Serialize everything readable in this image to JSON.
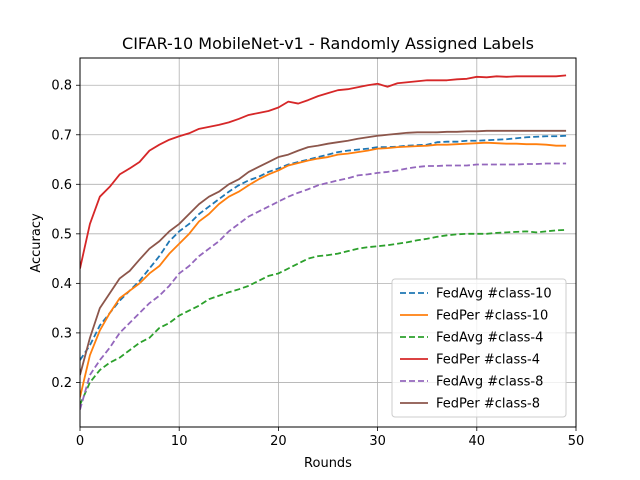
{
  "chart_data": {
    "type": "line",
    "title": "CIFAR-10 MobileNet-v1 - Randomly Assigned Labels",
    "xlabel": "Rounds",
    "ylabel": "Accuracy",
    "xlim": [
      0,
      50
    ],
    "ylim": [
      0.11,
      0.855
    ],
    "xticks": [
      0,
      10,
      20,
      30,
      40,
      50
    ],
    "yticks": [
      0.2,
      0.3,
      0.4,
      0.5,
      0.6,
      0.7,
      0.8
    ],
    "grid": true,
    "legend_position": "lower-right",
    "x": [
      0,
      1,
      2,
      3,
      4,
      5,
      6,
      7,
      8,
      9,
      10,
      11,
      12,
      13,
      14,
      15,
      16,
      17,
      18,
      19,
      20,
      21,
      22,
      23,
      24,
      25,
      26,
      27,
      28,
      29,
      30,
      31,
      32,
      33,
      34,
      35,
      36,
      37,
      38,
      39,
      40,
      41,
      42,
      43,
      44,
      45,
      46,
      47,
      48,
      49
    ],
    "series": [
      {
        "name": "FedAvg #class-10",
        "color": "#1f77b4",
        "dash": true,
        "values": [
          0.245,
          0.275,
          0.315,
          0.34,
          0.365,
          0.385,
          0.405,
          0.43,
          0.455,
          0.485,
          0.505,
          0.52,
          0.54,
          0.555,
          0.57,
          0.585,
          0.598,
          0.608,
          0.615,
          0.625,
          0.632,
          0.64,
          0.645,
          0.65,
          0.655,
          0.66,
          0.665,
          0.668,
          0.67,
          0.672,
          0.675,
          0.675,
          0.676,
          0.678,
          0.679,
          0.68,
          0.685,
          0.686,
          0.686,
          0.688,
          0.688,
          0.689,
          0.69,
          0.691,
          0.693,
          0.695,
          0.696,
          0.697,
          0.697,
          0.698
        ]
      },
      {
        "name": "FedPer #class-10",
        "color": "#ff7f0e",
        "dash": false,
        "values": [
          0.17,
          0.255,
          0.305,
          0.34,
          0.37,
          0.385,
          0.4,
          0.42,
          0.435,
          0.46,
          0.48,
          0.5,
          0.525,
          0.54,
          0.56,
          0.575,
          0.585,
          0.598,
          0.61,
          0.62,
          0.628,
          0.638,
          0.643,
          0.648,
          0.652,
          0.655,
          0.66,
          0.662,
          0.665,
          0.668,
          0.672,
          0.673,
          0.675,
          0.676,
          0.677,
          0.678,
          0.68,
          0.68,
          0.681,
          0.682,
          0.683,
          0.684,
          0.683,
          0.682,
          0.682,
          0.681,
          0.681,
          0.68,
          0.678,
          0.678
        ]
      },
      {
        "name": "FedAvg #class-4",
        "color": "#2ca02c",
        "dash": true,
        "values": [
          0.155,
          0.2,
          0.225,
          0.24,
          0.25,
          0.265,
          0.28,
          0.29,
          0.31,
          0.32,
          0.335,
          0.345,
          0.355,
          0.368,
          0.375,
          0.382,
          0.388,
          0.395,
          0.405,
          0.415,
          0.42,
          0.43,
          0.44,
          0.45,
          0.455,
          0.457,
          0.46,
          0.465,
          0.47,
          0.473,
          0.475,
          0.477,
          0.48,
          0.483,
          0.487,
          0.49,
          0.494,
          0.497,
          0.499,
          0.5,
          0.5,
          0.5,
          0.502,
          0.503,
          0.504,
          0.505,
          0.503,
          0.505,
          0.507,
          0.508
        ]
      },
      {
        "name": "FedPer #class-4",
        "color": "#d62728",
        "dash": false,
        "values": [
          0.43,
          0.52,
          0.575,
          0.595,
          0.62,
          0.632,
          0.645,
          0.668,
          0.68,
          0.69,
          0.697,
          0.703,
          0.712,
          0.716,
          0.72,
          0.725,
          0.732,
          0.74,
          0.744,
          0.748,
          0.755,
          0.767,
          0.763,
          0.77,
          0.778,
          0.784,
          0.79,
          0.792,
          0.796,
          0.8,
          0.803,
          0.797,
          0.804,
          0.806,
          0.808,
          0.81,
          0.81,
          0.81,
          0.812,
          0.813,
          0.817,
          0.816,
          0.818,
          0.817,
          0.818,
          0.818,
          0.818,
          0.818,
          0.818,
          0.82
        ]
      },
      {
        "name": "FedAvg #class-8",
        "color": "#9467bd",
        "dash": true,
        "values": [
          0.145,
          0.215,
          0.245,
          0.27,
          0.3,
          0.32,
          0.34,
          0.36,
          0.375,
          0.395,
          0.42,
          0.435,
          0.455,
          0.47,
          0.485,
          0.505,
          0.52,
          0.535,
          0.545,
          0.555,
          0.565,
          0.575,
          0.583,
          0.59,
          0.598,
          0.603,
          0.608,
          0.612,
          0.618,
          0.62,
          0.623,
          0.625,
          0.628,
          0.632,
          0.635,
          0.637,
          0.637,
          0.638,
          0.638,
          0.638,
          0.64,
          0.64,
          0.64,
          0.64,
          0.64,
          0.641,
          0.641,
          0.642,
          0.642,
          0.642
        ]
      },
      {
        "name": "FedPer #class-8",
        "color": "#8c564b",
        "dash": false,
        "values": [
          0.215,
          0.29,
          0.35,
          0.38,
          0.41,
          0.425,
          0.448,
          0.47,
          0.485,
          0.505,
          0.52,
          0.54,
          0.56,
          0.575,
          0.585,
          0.6,
          0.61,
          0.625,
          0.635,
          0.645,
          0.655,
          0.66,
          0.668,
          0.675,
          0.678,
          0.682,
          0.685,
          0.688,
          0.692,
          0.695,
          0.698,
          0.7,
          0.702,
          0.704,
          0.705,
          0.705,
          0.705,
          0.706,
          0.706,
          0.707,
          0.707,
          0.708,
          0.708,
          0.708,
          0.708,
          0.708,
          0.708,
          0.708,
          0.708,
          0.708
        ]
      }
    ]
  }
}
